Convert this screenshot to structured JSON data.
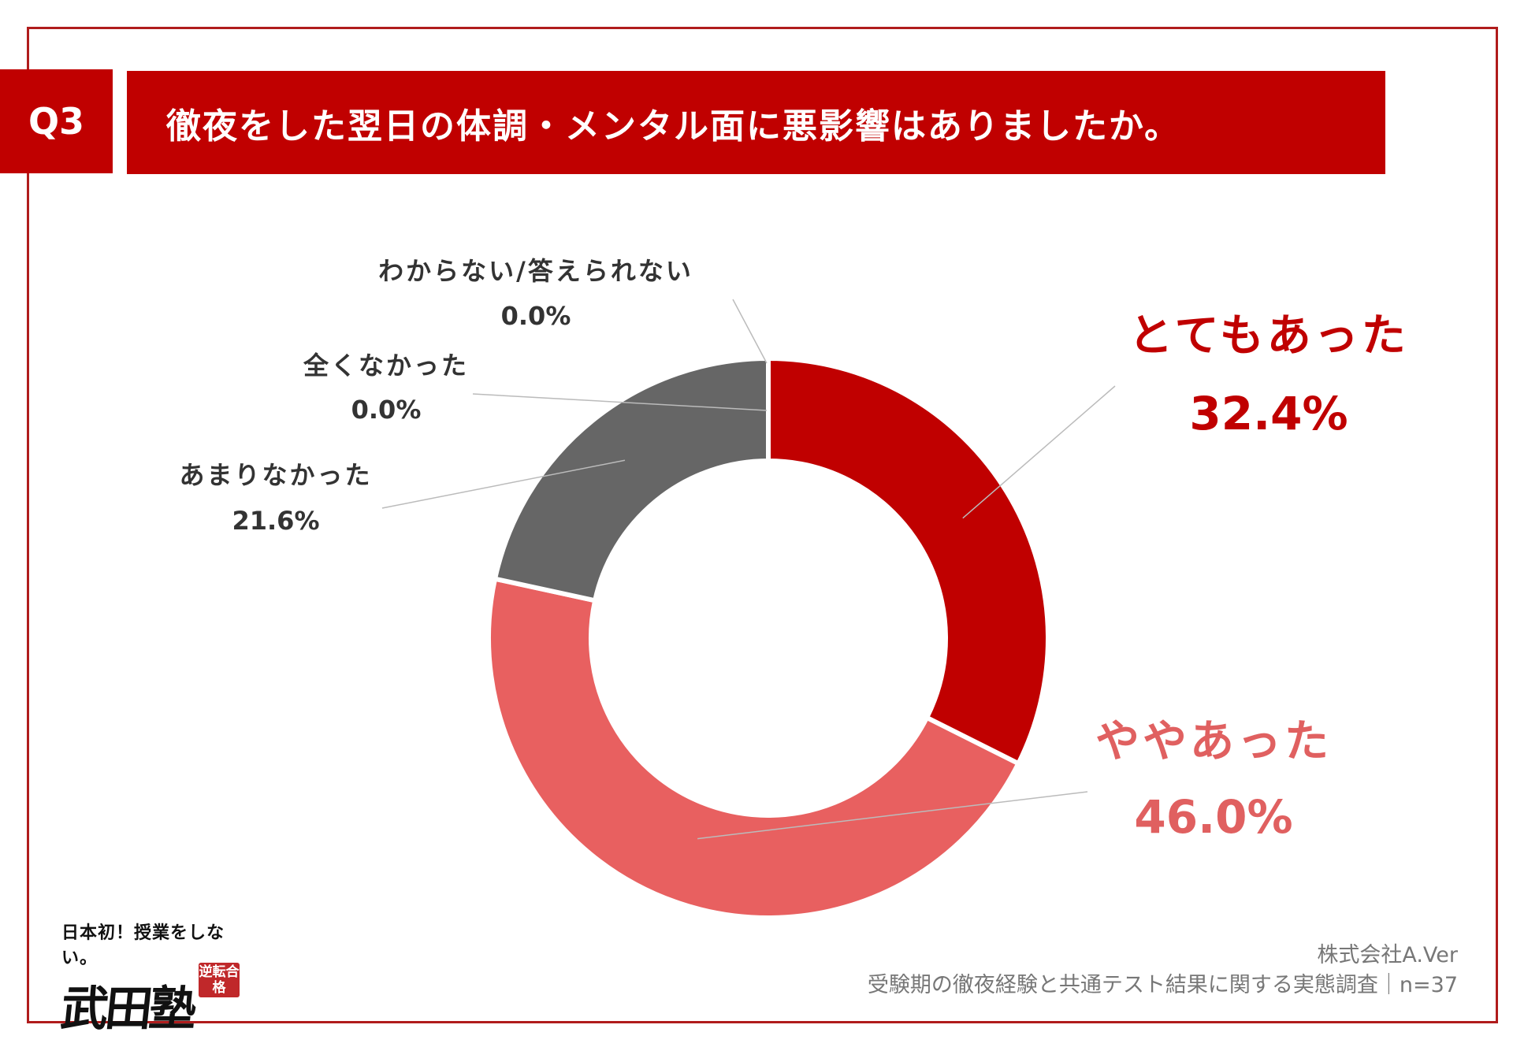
{
  "header": {
    "q_label": "Q3",
    "title": "徹夜をした翌日の体調・メンタル面に悪影響はありましたか。"
  },
  "colors": {
    "accent": "#c00000",
    "frame": "#b01c1c",
    "slice_very": "#c00000",
    "slice_some": "#e86060",
    "slice_notmuch": "#666666",
    "leader": "#bbbbbb"
  },
  "chart_data": {
    "type": "pie",
    "donut": true,
    "categories": [
      "とてもあった",
      "ややあった",
      "あまりなかった",
      "全くなかった",
      "わからない/答えられない"
    ],
    "values": [
      32.4,
      46.0,
      21.6,
      0.0,
      0.0
    ],
    "value_labels": [
      "32.4%",
      "46.0%",
      "21.6%",
      "0.0%",
      "0.0%"
    ],
    "colors": [
      "#c00000",
      "#e86060",
      "#666666",
      "#666666",
      "#666666"
    ],
    "label_colors": [
      "#c00000",
      "#e06060",
      "#333333",
      "#333333",
      "#333333"
    ],
    "start_angle_deg": 0,
    "direction": "clockwise"
  },
  "logo": {
    "tagline": "日本初！授業をしない。",
    "name": "武田塾",
    "stamp": "逆転合格"
  },
  "source": {
    "company": "株式会社A.Ver",
    "survey": "受験期の徹夜経験と共通テスト結果に関する実態調査｜n=37"
  }
}
